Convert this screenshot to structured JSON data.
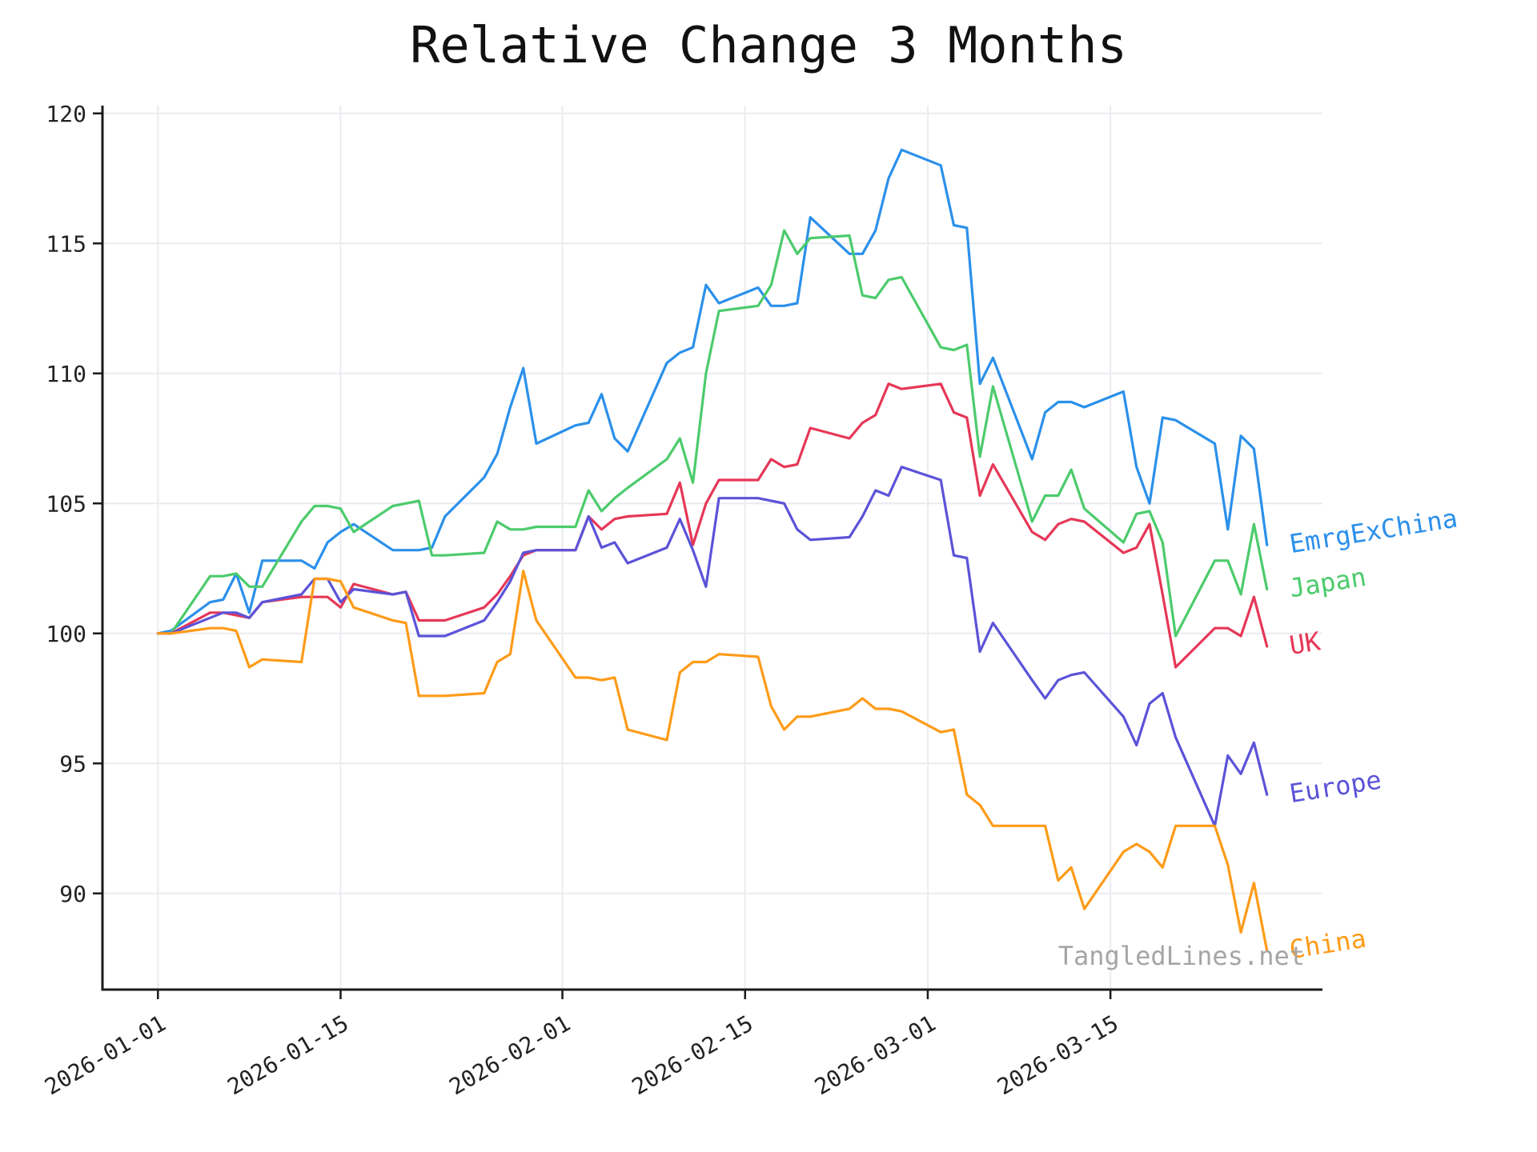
{
  "title": "Relative Change 3 Months",
  "watermark": "TangledLines.net",
  "chart_data": {
    "type": "line",
    "title": "Relative Change 3 Months",
    "xlabel": "",
    "ylabel": "",
    "grid": true,
    "legend_position": "right-edge-labels",
    "y_ticks": [
      90,
      95,
      100,
      105,
      110,
      115,
      120
    ],
    "ylim": [
      86.3,
      120.3
    ],
    "x_ticks": [
      "2026-01-01",
      "2026-01-15",
      "2026-02-01",
      "2026-02-15",
      "2026-03-01",
      "2026-03-15"
    ],
    "dates": [
      "2026-01-01",
      "2026-01-02",
      "2026-01-05",
      "2026-01-06",
      "2026-01-07",
      "2026-01-08",
      "2026-01-09",
      "2026-01-12",
      "2026-01-13",
      "2026-01-14",
      "2026-01-15",
      "2026-01-16",
      "2026-01-19",
      "2026-01-20",
      "2026-01-21",
      "2026-01-22",
      "2026-01-23",
      "2026-01-26",
      "2026-01-27",
      "2026-01-28",
      "2026-01-29",
      "2026-01-30",
      "2026-02-02",
      "2026-02-03",
      "2026-02-04",
      "2026-02-05",
      "2026-02-06",
      "2026-02-09",
      "2026-02-10",
      "2026-02-11",
      "2026-02-12",
      "2026-02-13",
      "2026-02-16",
      "2026-02-17",
      "2026-02-18",
      "2026-02-19",
      "2026-02-20",
      "2026-02-23",
      "2026-02-24",
      "2026-02-25",
      "2026-02-26",
      "2026-02-27",
      "2026-03-02",
      "2026-03-03",
      "2026-03-04",
      "2026-03-05",
      "2026-03-06",
      "2026-03-09",
      "2026-03-10",
      "2026-03-11",
      "2026-03-12",
      "2026-03-13",
      "2026-03-16",
      "2026-03-17",
      "2026-03-18",
      "2026-03-19",
      "2026-03-20",
      "2026-03-23",
      "2026-03-24",
      "2026-03-25",
      "2026-03-26",
      "2026-03-27"
    ],
    "series": [
      {
        "name": "EmrgExChina",
        "color": "#2b90ea",
        "values": [
          100.0,
          100.1,
          101.2,
          101.3,
          102.3,
          100.8,
          102.8,
          102.8,
          102.5,
          103.5,
          103.9,
          104.2,
          103.2,
          103.2,
          103.2,
          103.3,
          104.5,
          106.0,
          106.9,
          108.7,
          110.2,
          107.3,
          108.0,
          108.1,
          109.2,
          107.5,
          107.0,
          110.4,
          110.8,
          111.0,
          113.4,
          112.7,
          113.3,
          112.6,
          112.6,
          112.7,
          116.0,
          114.6,
          114.6,
          115.5,
          117.5,
          118.6,
          118.0,
          115.7,
          115.6,
          109.6,
          110.6,
          106.7,
          108.5,
          108.9,
          108.9,
          108.7,
          109.3,
          106.4,
          105.0,
          108.3,
          108.2,
          107.3,
          104.0,
          107.6,
          107.1,
          103.4
        ]
      },
      {
        "name": "Japan",
        "color": "#4ccb6c",
        "values": [
          100.0,
          100.0,
          102.2,
          102.2,
          102.3,
          101.8,
          101.8,
          104.3,
          104.9,
          104.9,
          104.8,
          103.9,
          104.9,
          105.0,
          105.1,
          103.0,
          103.0,
          103.1,
          104.3,
          104.0,
          104.0,
          104.1,
          104.1,
          105.5,
          104.7,
          105.2,
          105.6,
          106.7,
          107.5,
          105.8,
          110.0,
          112.4,
          112.6,
          113.4,
          115.5,
          114.6,
          115.2,
          115.3,
          113.0,
          112.9,
          113.6,
          113.7,
          111.0,
          110.9,
          111.1,
          106.8,
          109.5,
          104.3,
          105.3,
          105.3,
          106.3,
          104.8,
          103.5,
          104.6,
          104.7,
          103.5,
          99.9,
          102.8,
          102.8,
          101.5,
          104.2,
          101.7
        ]
      },
      {
        "name": "UK",
        "color": "#e63757",
        "values": [
          100.0,
          100.0,
          100.8,
          100.8,
          100.7,
          100.6,
          101.2,
          101.4,
          101.4,
          101.4,
          101.0,
          101.9,
          101.5,
          101.6,
          100.5,
          100.5,
          100.5,
          101.0,
          101.5,
          102.2,
          103.0,
          103.2,
          103.2,
          104.5,
          104.0,
          104.4,
          104.5,
          104.6,
          105.8,
          103.4,
          105.0,
          105.9,
          105.9,
          106.7,
          106.4,
          106.5,
          107.9,
          107.5,
          108.1,
          108.4,
          109.6,
          109.4,
          109.6,
          108.5,
          108.3,
          105.3,
          106.5,
          103.9,
          103.6,
          104.2,
          104.4,
          104.3,
          103.1,
          103.3,
          104.2,
          101.5,
          98.7,
          100.2,
          100.2,
          99.9,
          101.4,
          99.5
        ]
      },
      {
        "name": "Europe",
        "color": "#5b53d8",
        "values": [
          100.0,
          100.0,
          100.6,
          100.8,
          100.8,
          100.6,
          101.2,
          101.5,
          102.1,
          102.1,
          101.2,
          101.7,
          101.5,
          101.6,
          99.9,
          99.9,
          99.9,
          100.5,
          101.2,
          102.0,
          103.1,
          103.2,
          103.2,
          104.5,
          103.3,
          103.5,
          102.7,
          103.3,
          104.4,
          103.2,
          101.8,
          105.2,
          105.2,
          105.1,
          105.0,
          104.0,
          103.6,
          103.7,
          104.5,
          105.5,
          105.3,
          106.4,
          105.9,
          103.0,
          102.9,
          99.3,
          100.4,
          98.2,
          97.5,
          98.2,
          98.4,
          98.5,
          96.8,
          95.7,
          97.3,
          97.7,
          96.0,
          92.6,
          95.3,
          94.6,
          95.8,
          93.8
        ]
      },
      {
        "name": "China",
        "color": "#fe9b18",
        "values": [
          100.0,
          100.0,
          100.2,
          100.2,
          100.1,
          98.7,
          99.0,
          98.9,
          102.1,
          102.1,
          102.0,
          101.0,
          100.5,
          100.4,
          97.6,
          97.6,
          97.6,
          97.7,
          98.9,
          99.2,
          102.4,
          100.5,
          98.3,
          98.3,
          98.2,
          98.3,
          96.3,
          95.9,
          98.5,
          98.9,
          98.9,
          99.2,
          99.1,
          97.2,
          96.3,
          96.8,
          96.8,
          97.1,
          97.5,
          97.1,
          97.1,
          97.0,
          96.2,
          96.3,
          93.8,
          93.4,
          92.6,
          92.6,
          92.6,
          90.5,
          91.0,
          89.4,
          91.6,
          91.9,
          91.6,
          91.0,
          92.6,
          92.6,
          91.1,
          88.5,
          90.4,
          87.8
        ]
      }
    ]
  }
}
